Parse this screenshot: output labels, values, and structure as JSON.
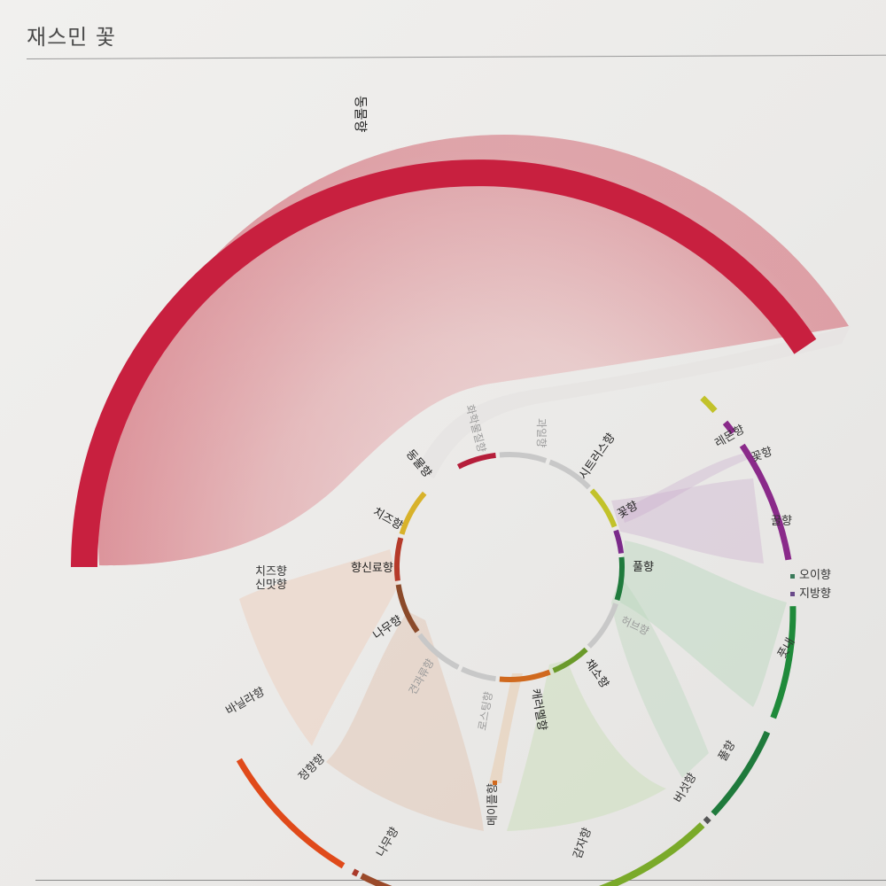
{
  "title": "재스민 꽃",
  "inner_ring": [
    {
      "label": "동물향",
      "color": "#b51e3a",
      "muted": false
    },
    {
      "label": "화학물질향",
      "color": "#c8c8c8",
      "muted": true
    },
    {
      "label": "과일향",
      "color": "#c8c8c8",
      "muted": true
    },
    {
      "label": "시트러스향",
      "color": "#c2c22a",
      "muted": false
    },
    {
      "label": "꽃향",
      "color": "#7b2a8a",
      "muted": false
    },
    {
      "label": "풀향",
      "color": "#1f7a3c",
      "muted": false
    },
    {
      "label": "허브향",
      "color": "#c8c8c8",
      "muted": true
    },
    {
      "label": "채소향",
      "color": "#6a9a2a",
      "muted": false
    },
    {
      "label": "캐러멜향",
      "color": "#d0691e",
      "muted": false
    },
    {
      "label": "로스팅향",
      "color": "#c8c8c8",
      "muted": true
    },
    {
      "label": "견과류향",
      "color": "#c8c8c8",
      "muted": true
    },
    {
      "label": "나무향",
      "color": "#8b4a2a",
      "muted": false
    },
    {
      "label": "향신료향",
      "color": "#b53a2a",
      "muted": false
    },
    {
      "label": "치즈향",
      "color": "#d8b22a",
      "muted": false
    }
  ],
  "outer_ring": [
    {
      "label": "동물향",
      "color": "#c8203f"
    },
    {
      "label": "레몬향",
      "color": "#c2c22a"
    },
    {
      "label": "꽃향",
      "color": "#8a2a8a"
    },
    {
      "label": "꿀향",
      "color": "#8a2a8a"
    },
    {
      "label": "오이향",
      "color": "#3a7a5a"
    },
    {
      "label": "지방향",
      "color": "#6a4a8a"
    },
    {
      "label": "풋내",
      "color": "#1f8a3a"
    },
    {
      "label": "풀향",
      "color": "#1f7a3c"
    },
    {
      "label": "버섯향",
      "color": "#555555"
    },
    {
      "label": "감자향",
      "color": "#7aaa2a"
    },
    {
      "label": "메이플향",
      "color": "#d0691e"
    },
    {
      "label": "나무향",
      "color": "#9a4a2a"
    },
    {
      "label": "정향향",
      "color": "#aa3a2a"
    },
    {
      "label": "바닐라향",
      "color": "#e04a1a"
    },
    {
      "label": "신맛향",
      "color": "#c8c8c8"
    },
    {
      "label": "치즈향",
      "color": "#c8c8c8"
    }
  ]
}
